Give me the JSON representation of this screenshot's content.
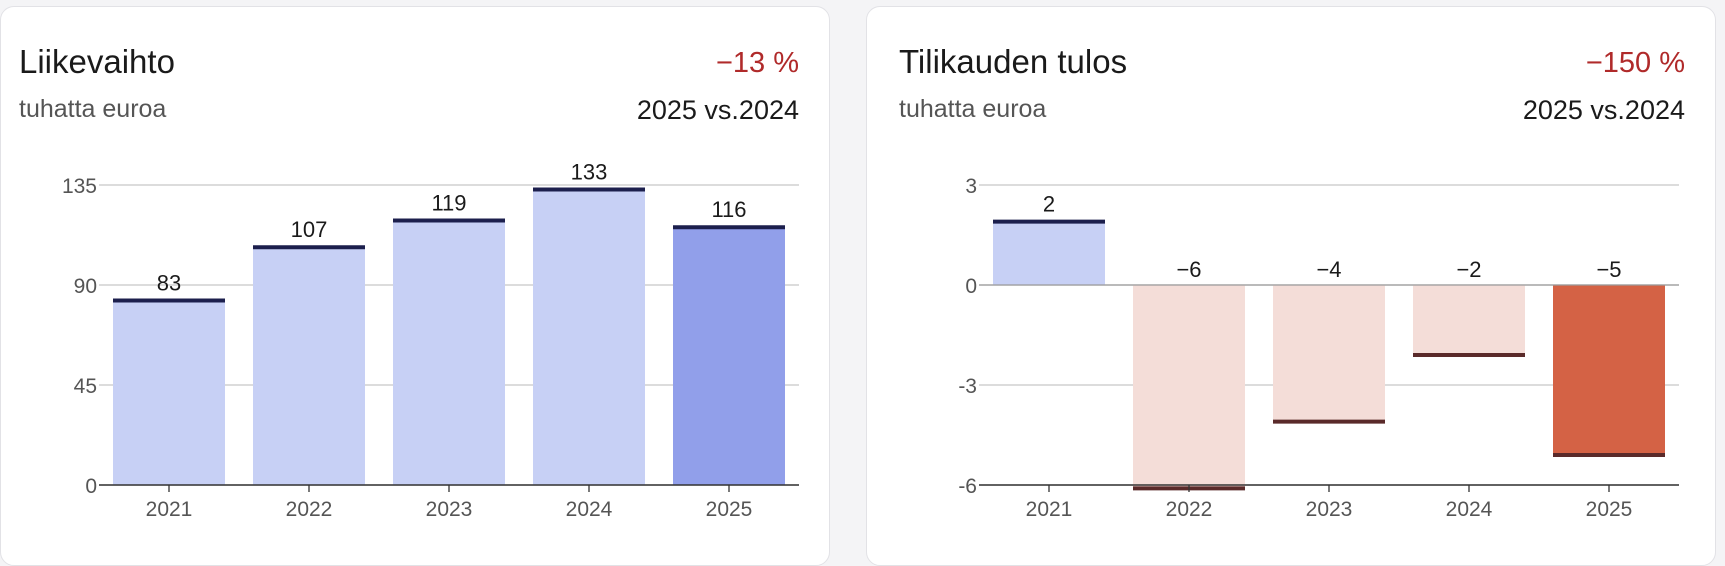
{
  "cards": [
    {
      "title": "Liikevaihto",
      "subtitle": "tuhatta euroa",
      "change": "−13 %",
      "period": "2025 vs.2024"
    },
    {
      "title": "Tilikauden tulos",
      "subtitle": "tuhatta euroa",
      "change": "−150 %",
      "period": "2025 vs.2024"
    }
  ],
  "colors": {
    "past_positive": "#c7d0f5",
    "current_positive": "#919fea",
    "past_negative": "#f4ddd8",
    "current_negative": "#d46245",
    "top_line_positive": "#1c1f4d",
    "top_line_negative": "#5a2a2a",
    "grid": "#c8c8c8",
    "change_negative": "#b02a2a"
  },
  "chart_data": [
    {
      "type": "bar",
      "title": "Liikevaihto",
      "categories": [
        "2021",
        "2022",
        "2023",
        "2024",
        "2025"
      ],
      "values": [
        83,
        107,
        119,
        133,
        116
      ],
      "value_labels": [
        "83",
        "107",
        "119",
        "133",
        "116"
      ],
      "ylim": [
        0,
        135
      ],
      "yticks": [
        0,
        45,
        90,
        135
      ],
      "ytick_labels": [
        "0",
        "45",
        "90",
        "135"
      ],
      "grid": true,
      "highlight_index": 4
    },
    {
      "type": "bar",
      "title": "Tilikauden tulos",
      "categories": [
        "2021",
        "2022",
        "2023",
        "2024",
        "2025"
      ],
      "values": [
        1.9,
        -6.1,
        -4.1,
        -2.1,
        -5.1
      ],
      "value_labels": [
        "2",
        "−6",
        "−4",
        "−2",
        "−5"
      ],
      "ylim": [
        -6,
        3
      ],
      "yticks": [
        -6,
        -3,
        0,
        3
      ],
      "ytick_labels": [
        "-6",
        "-3",
        "0",
        "3"
      ],
      "grid": true,
      "highlight_index": 4
    }
  ]
}
